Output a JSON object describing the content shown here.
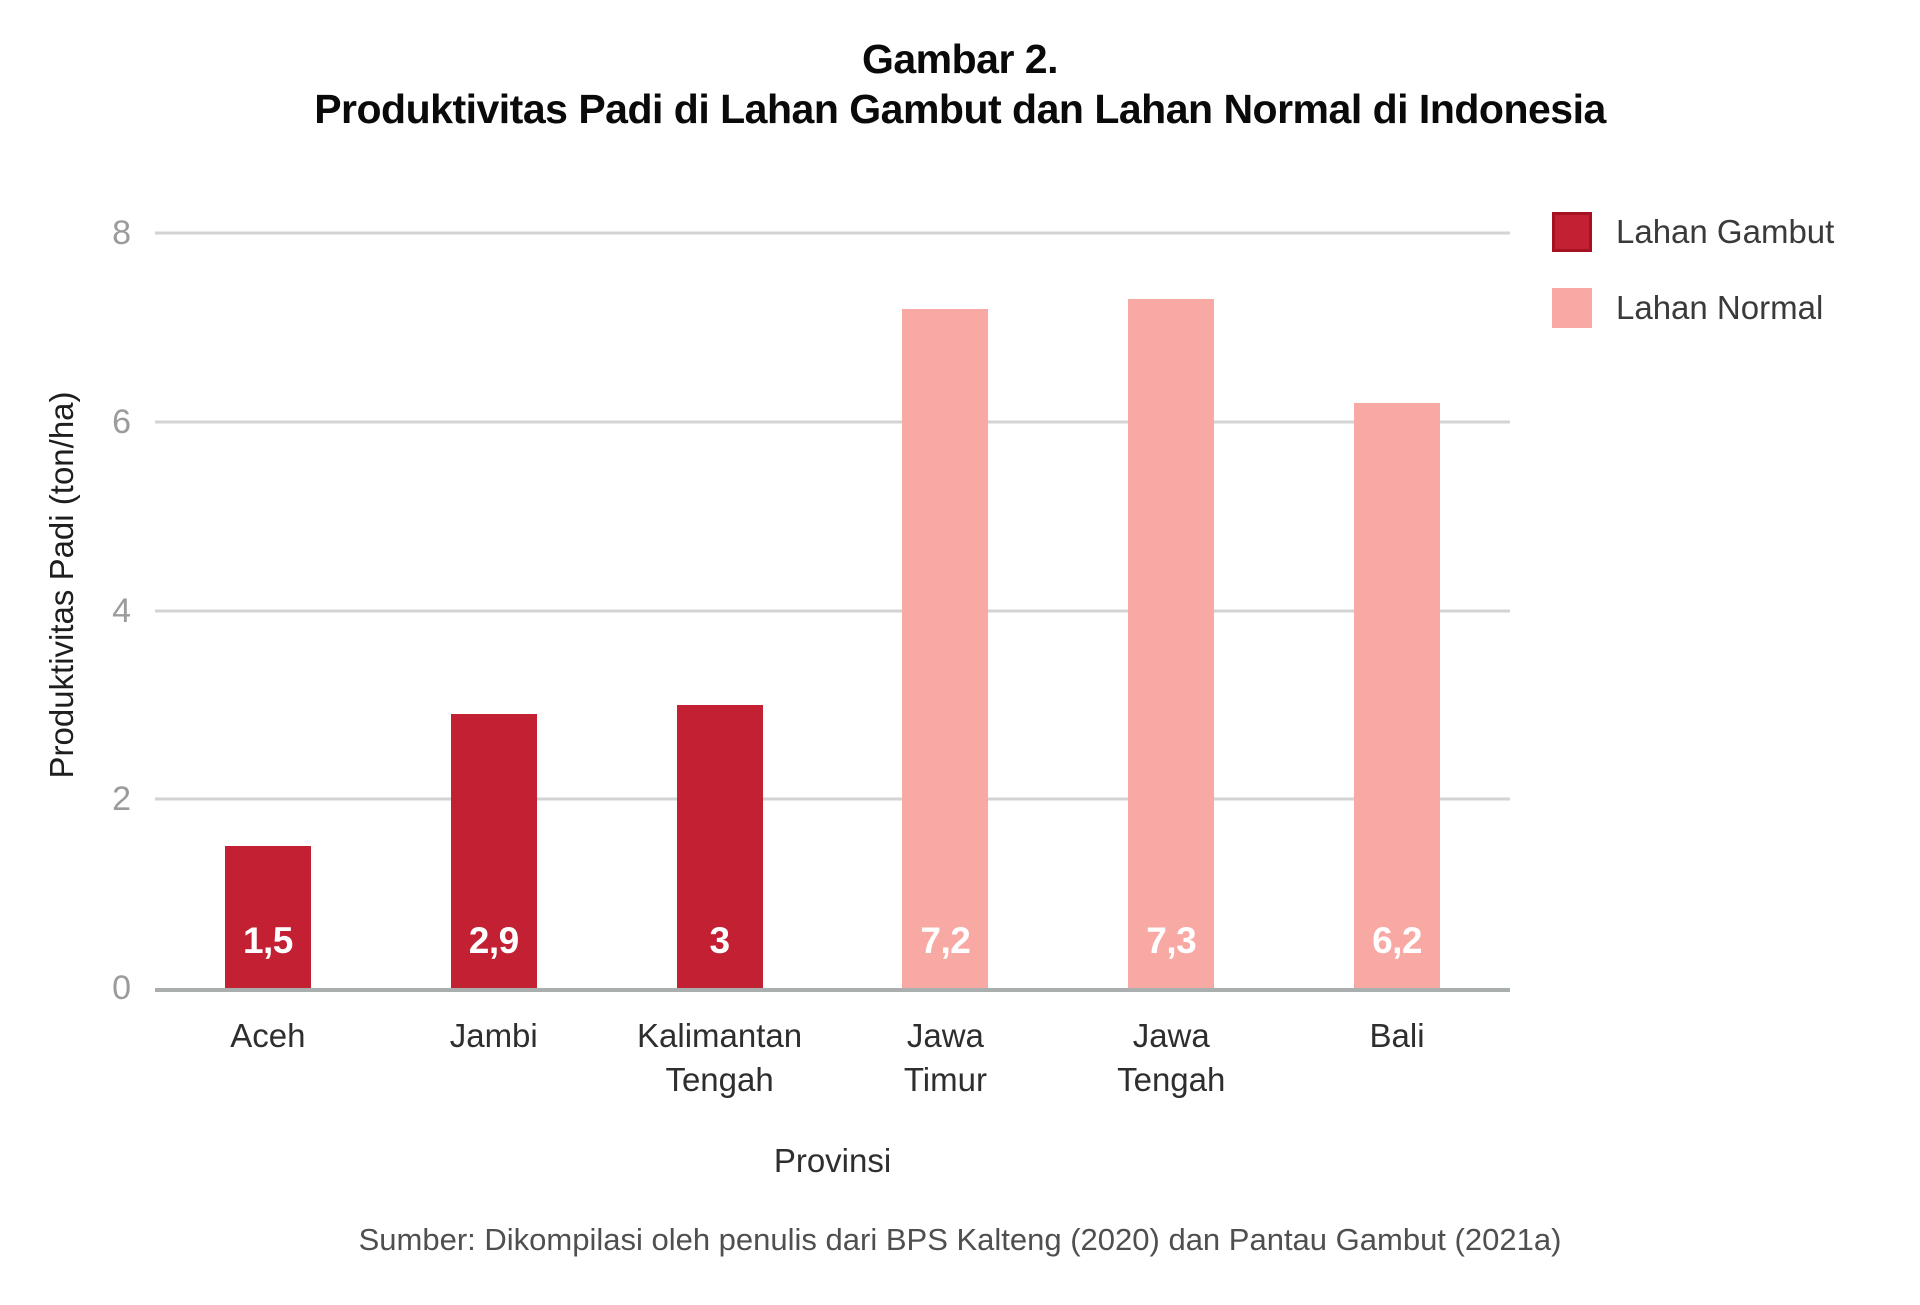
{
  "title": {
    "line1": "Gambar 2.",
    "line2": "Produktivitas Padi di Lahan Gambut dan Lahan Normal di Indonesia"
  },
  "colors": {
    "lahan_gambut": "#C32133",
    "lahan_gambut_border": "#A51323",
    "lahan_normal": "#F8A9A4",
    "gridline": "#D3D3D3",
    "axis_line": "#A9AFAF",
    "tick_label": "#9B9B9B"
  },
  "legend": {
    "items": [
      {
        "label": "Lahan Gambut",
        "color_key": "lahan_gambut"
      },
      {
        "label": "Lahan Normal",
        "color_key": "lahan_normal"
      }
    ]
  },
  "y_axis": {
    "title": "Produktivitas Padi (ton/ha)",
    "ticks": [
      "0",
      "2",
      "4",
      "6",
      "8"
    ],
    "max": 8
  },
  "x_axis": {
    "title": "Provinsi"
  },
  "source": "Sumber: Dikompilasi oleh penulis dari BPS Kalteng (2020) dan Pantau Gambut (2021a)",
  "chart_data": {
    "type": "bar",
    "title": "Gambar 2. Produktivitas Padi di Lahan Gambut dan Lahan Normal di Indonesia",
    "xlabel": "Provinsi",
    "ylabel": "Produktivitas Padi (ton/ha)",
    "ylim": [
      0,
      8
    ],
    "yticks": [
      0,
      2,
      4,
      6,
      8
    ],
    "grid": true,
    "legend_position": "top-right",
    "categories": [
      "Aceh",
      "Jambi",
      "Kalimantan Tengah",
      "Jawa Timur",
      "Jawa Tengah",
      "Bali"
    ],
    "series": [
      {
        "name": "Lahan Gambut",
        "color": "#C32133",
        "values": [
          1.5,
          2.9,
          3,
          null,
          null,
          null
        ]
      },
      {
        "name": "Lahan Normal",
        "color": "#F8A9A4",
        "values": [
          null,
          null,
          null,
          7.2,
          7.3,
          6.2
        ]
      }
    ],
    "bars": [
      {
        "category_lines": [
          "Aceh",
          ""
        ],
        "value": 1.5,
        "label": "1,5",
        "series": "Lahan Gambut",
        "color_key": "lahan_gambut"
      },
      {
        "category_lines": [
          "Jambi",
          ""
        ],
        "value": 2.9,
        "label": "2,9",
        "series": "Lahan Gambut",
        "color_key": "lahan_gambut"
      },
      {
        "category_lines": [
          "Kalimantan",
          "Tengah"
        ],
        "value": 3,
        "label": "3",
        "series": "Lahan Gambut",
        "color_key": "lahan_gambut"
      },
      {
        "category_lines": [
          "Jawa",
          "Timur"
        ],
        "value": 7.2,
        "label": "7,2",
        "series": "Lahan Normal",
        "color_key": "lahan_normal"
      },
      {
        "category_lines": [
          "Jawa",
          "Tengah"
        ],
        "value": 7.3,
        "label": "7,3",
        "series": "Lahan Normal",
        "color_key": "lahan_normal"
      },
      {
        "category_lines": [
          "Bali",
          ""
        ],
        "value": 6.2,
        "label": "6,2",
        "series": "Lahan Normal",
        "color_key": "lahan_normal"
      }
    ]
  }
}
